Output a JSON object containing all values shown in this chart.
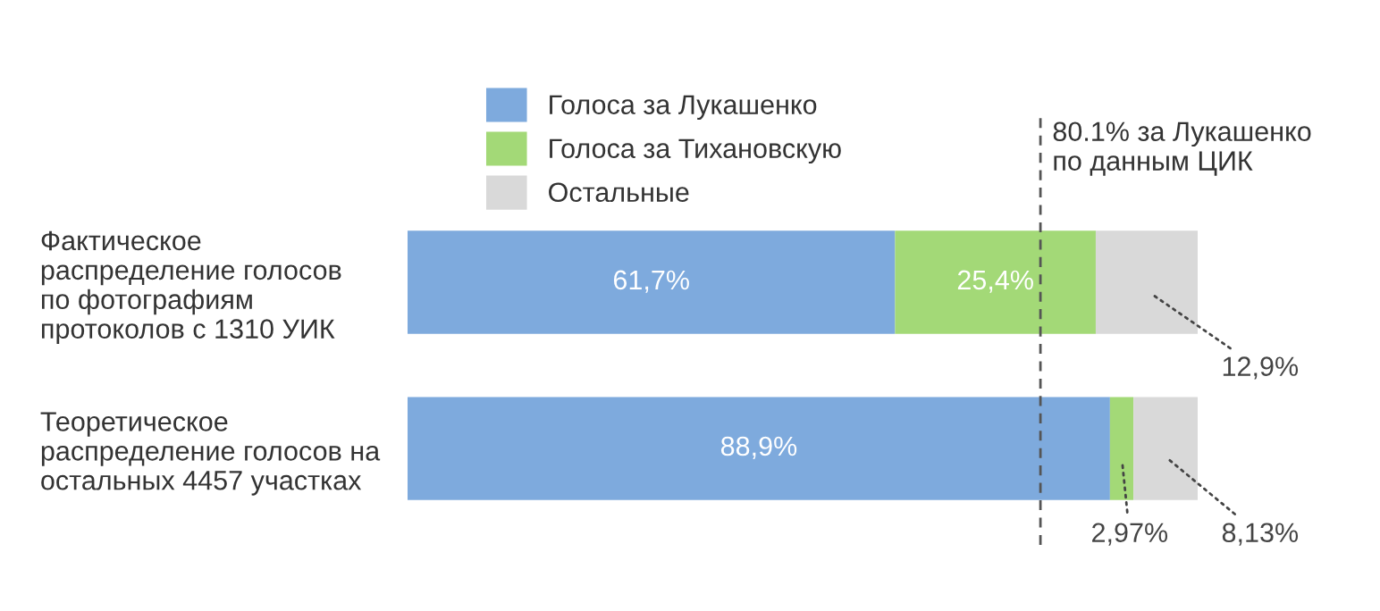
{
  "chart_data": {
    "type": "bar",
    "orientation": "horizontal",
    "stacked": true,
    "categories": [
      "Фактическое\nраспределение голосов\nпо фотографиям\nпротоколов с 1310 УИК",
      "Теоретическое\nраспределение голосов на\nостальных 4457 участках"
    ],
    "series": [
      {
        "name": "Голоса за Лукашенко",
        "color": "#7eaadd",
        "values": [
          61.7,
          88.9
        ],
        "value_labels": [
          "61,7%",
          "88,9%"
        ]
      },
      {
        "name": "Голоса за Тихановскую",
        "color": "#a3d977",
        "values": [
          25.4,
          2.97
        ],
        "value_labels": [
          "25,4%",
          "2,97%"
        ]
      },
      {
        "name": "Остальные",
        "color": "#d9d9d9",
        "values": [
          12.9,
          8.13
        ],
        "value_labels": [
          "12,9%",
          "8,13%"
        ]
      }
    ],
    "ref_lines": [
      {
        "axis": "x",
        "value": 80.1,
        "label": "80.1% за Лукашенко\nпо данным ЦИК",
        "line_style": "dashed",
        "color": "#555555"
      }
    ],
    "legend": "top",
    "tick_labels": "y",
    "grid": false
  }
}
